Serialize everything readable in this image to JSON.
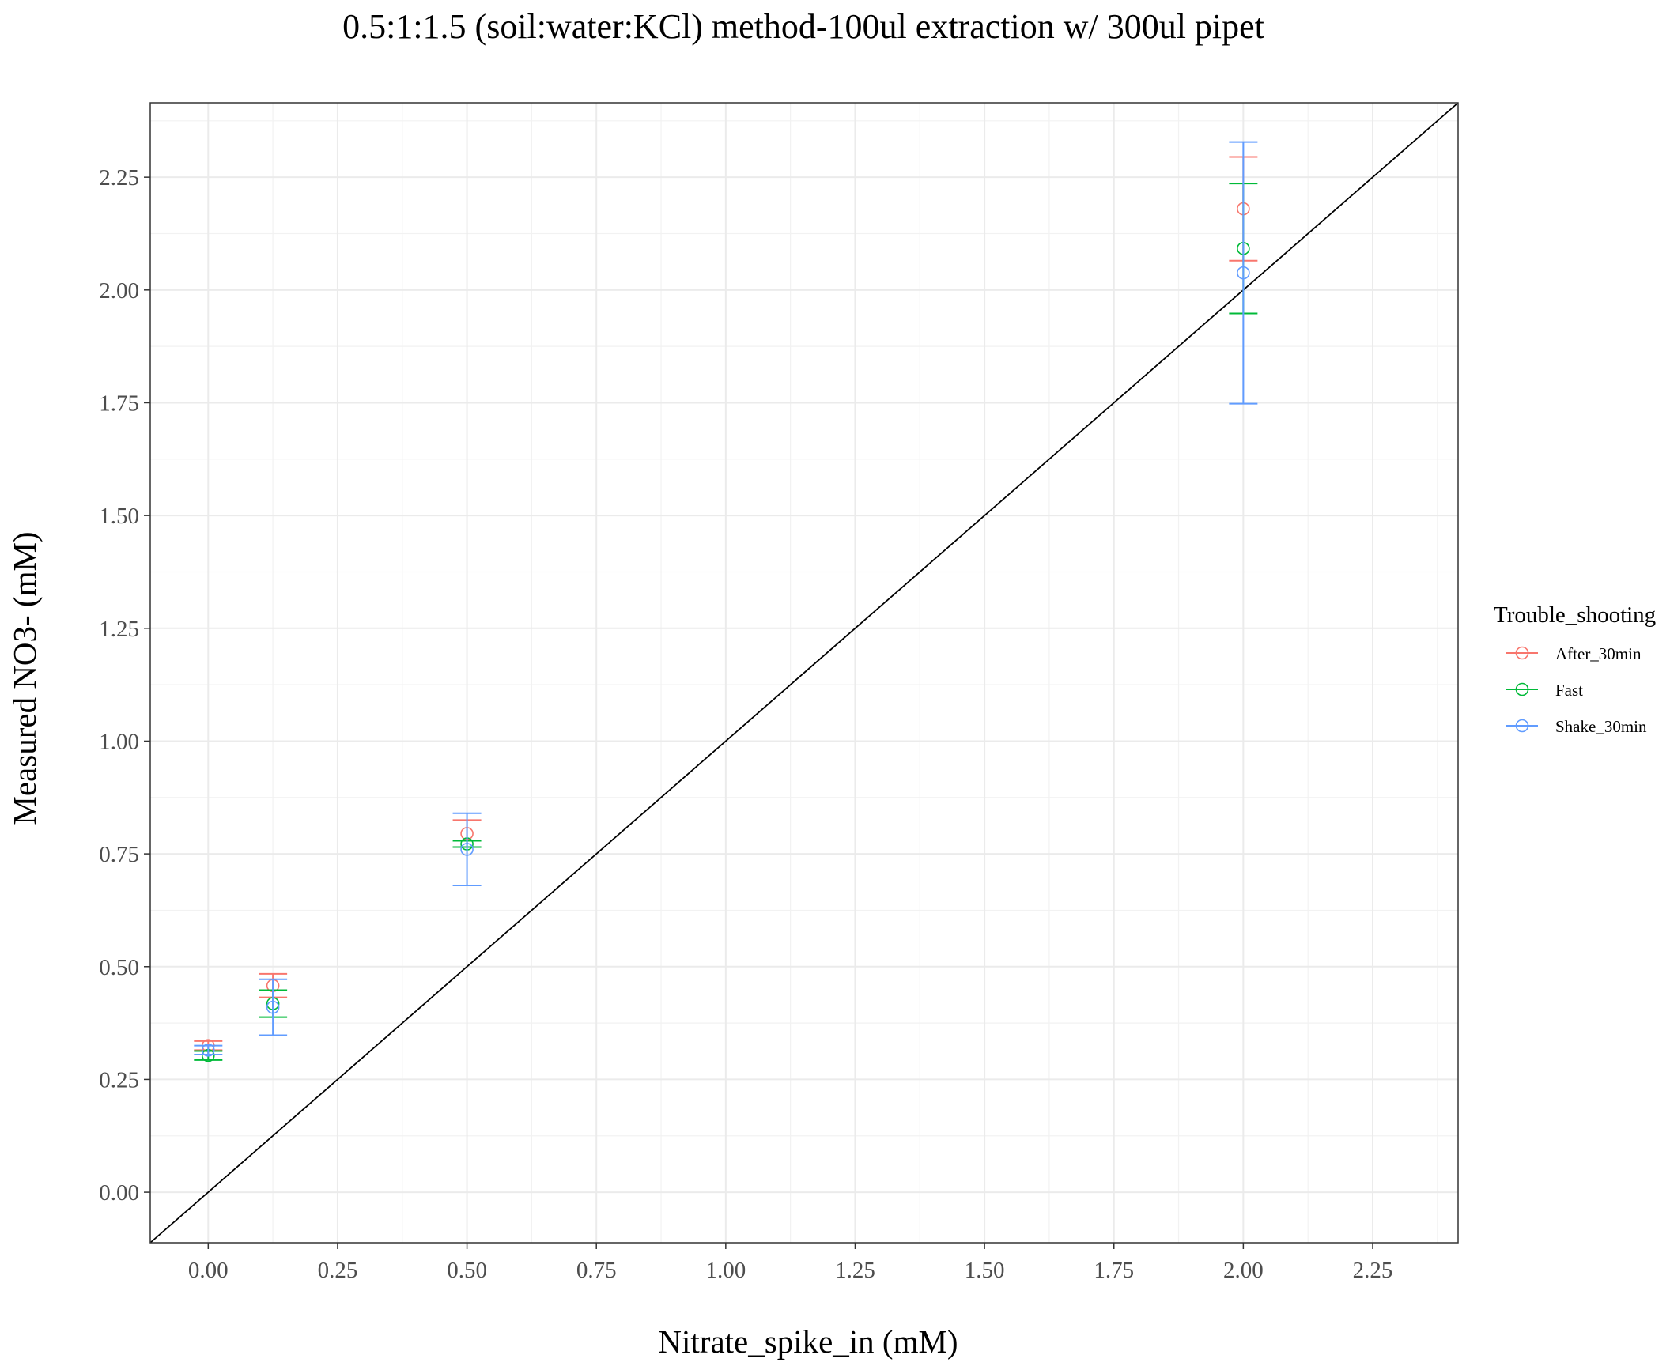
{
  "chart_data": {
    "type": "scatter",
    "title": "0.5:1:1.5 (soil:water:KCl) method-100ul extraction w/ 300ul pipet",
    "xlabel": "Nitrate_spike_in (mM)",
    "ylabel": "Measured NO3- (mM)",
    "xlim": [
      -0.112,
      2.415
    ],
    "ylim": [
      -0.112,
      2.415
    ],
    "x_ticks": [
      "0.00",
      "0.25",
      "0.50",
      "0.75",
      "1.00",
      "1.25",
      "1.50",
      "1.75",
      "2.00",
      "2.25"
    ],
    "y_ticks": [
      "0.00",
      "0.25",
      "0.50",
      "0.75",
      "1.00",
      "1.25",
      "1.50",
      "1.75",
      "2.00",
      "2.25"
    ],
    "x_tick_values": [
      0,
      0.25,
      0.5,
      0.75,
      1.0,
      1.25,
      1.5,
      1.75,
      2.0,
      2.25
    ],
    "y_tick_values": [
      0,
      0.25,
      0.5,
      0.75,
      1.0,
      1.25,
      1.5,
      1.75,
      2.0,
      2.25
    ],
    "grid": true,
    "reference_line": "y = x",
    "legend": {
      "title": "Trouble_shooting",
      "position": "right"
    },
    "series": [
      {
        "name": "After_30min",
        "color": "#F8766D",
        "points": [
          {
            "x": 0.0,
            "y": 0.325,
            "ymin": 0.315,
            "ymax": 0.335
          },
          {
            "x": 0.125,
            "y": 0.458,
            "ymin": 0.432,
            "ymax": 0.484
          },
          {
            "x": 0.5,
            "y": 0.795,
            "ymin": 0.765,
            "ymax": 0.825
          },
          {
            "x": 2.0,
            "y": 2.18,
            "ymin": 2.065,
            "ymax": 2.295
          }
        ]
      },
      {
        "name": "Fast",
        "color": "#00BA38",
        "points": [
          {
            "x": 0.0,
            "y": 0.303,
            "ymin": 0.293,
            "ymax": 0.313
          },
          {
            "x": 0.125,
            "y": 0.418,
            "ymin": 0.388,
            "ymax": 0.448
          },
          {
            "x": 0.5,
            "y": 0.772,
            "ymin": 0.765,
            "ymax": 0.779
          },
          {
            "x": 2.0,
            "y": 2.092,
            "ymin": 1.948,
            "ymax": 2.236
          }
        ]
      },
      {
        "name": "Shake_30min",
        "color": "#619CFF",
        "points": [
          {
            "x": 0.0,
            "y": 0.315,
            "ymin": 0.305,
            "ymax": 0.325
          },
          {
            "x": 0.125,
            "y": 0.41,
            "ymin": 0.348,
            "ymax": 0.472
          },
          {
            "x": 0.5,
            "y": 0.76,
            "ymin": 0.68,
            "ymax": 0.84
          },
          {
            "x": 2.0,
            "y": 2.038,
            "ymin": 1.748,
            "ymax": 2.328
          }
        ]
      }
    ]
  }
}
